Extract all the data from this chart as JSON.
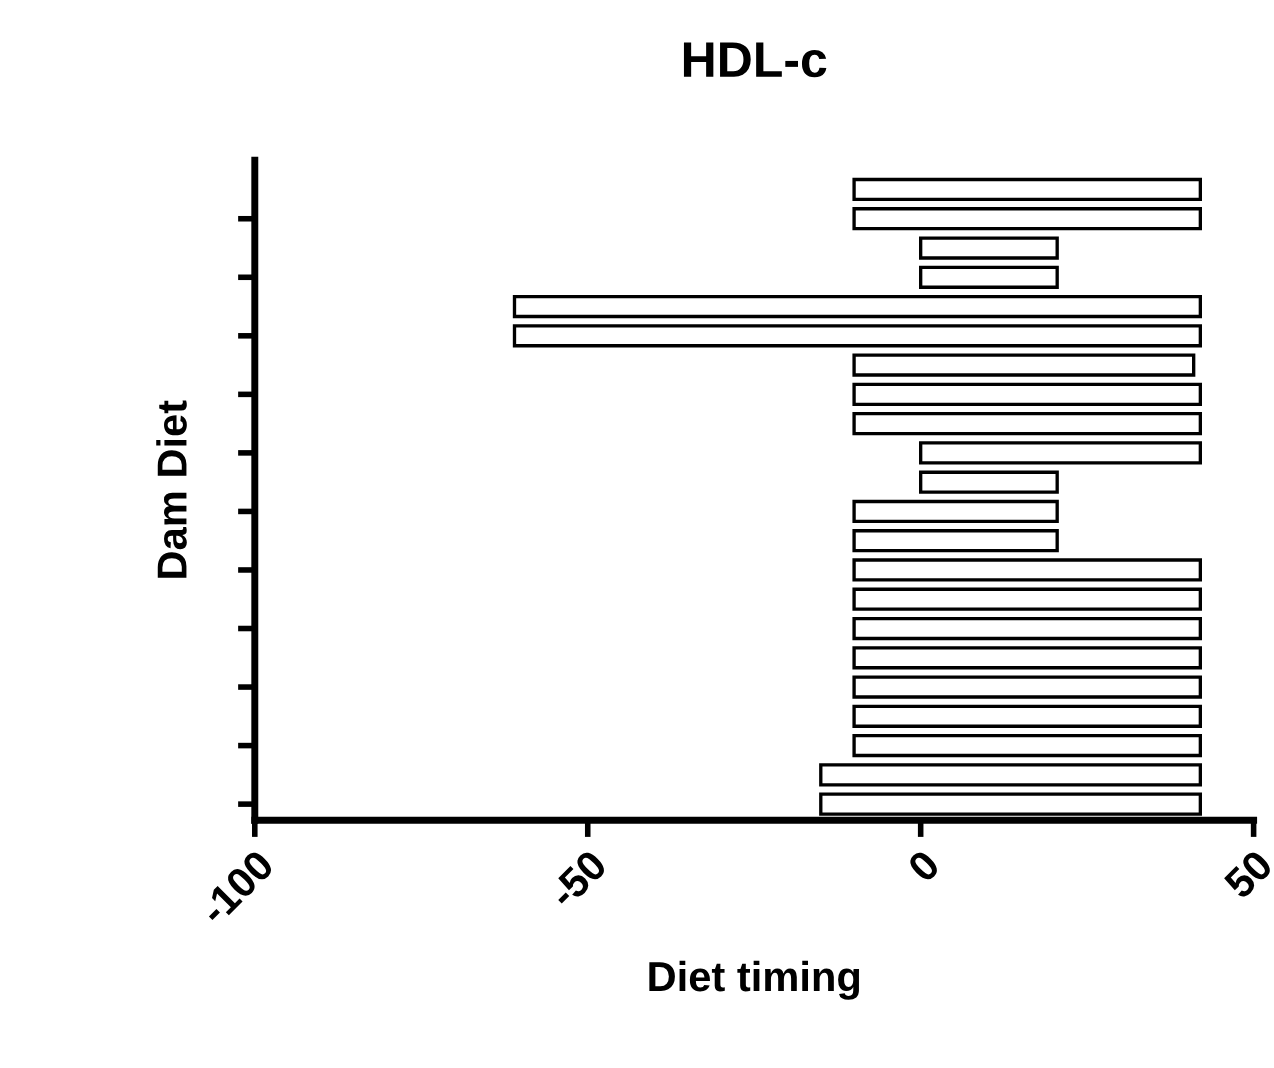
{
  "chart_data": {
    "type": "bar",
    "orientation": "horizontal",
    "title": "HDL-c",
    "xlabel": "Diet timing",
    "ylabel": "Dam Diet",
    "categories": [
      null,
      null,
      null,
      null,
      null,
      null,
      null,
      null,
      null,
      null,
      null,
      null,
      null,
      null,
      null,
      null,
      null,
      null,
      null,
      null,
      null,
      null
    ],
    "base": [
      -10,
      -10,
      0,
      0,
      -61,
      -61,
      -10,
      -10,
      -10,
      0,
      0,
      -10,
      -10,
      -10,
      -10,
      -10,
      -10,
      -10,
      -10,
      -10,
      -15,
      -15
    ],
    "values": [
      52,
      52,
      20.5,
      20.5,
      103,
      103,
      51,
      52,
      52,
      42,
      20.5,
      30.5,
      30.5,
      52,
      52,
      52,
      52,
      52,
      52,
      52,
      57,
      57
    ],
    "color": "#ffffff",
    "xlim": [
      -100,
      50
    ],
    "xticks": [
      -100,
      -50,
      0,
      50
    ],
    "grid": false,
    "legend": false
  }
}
